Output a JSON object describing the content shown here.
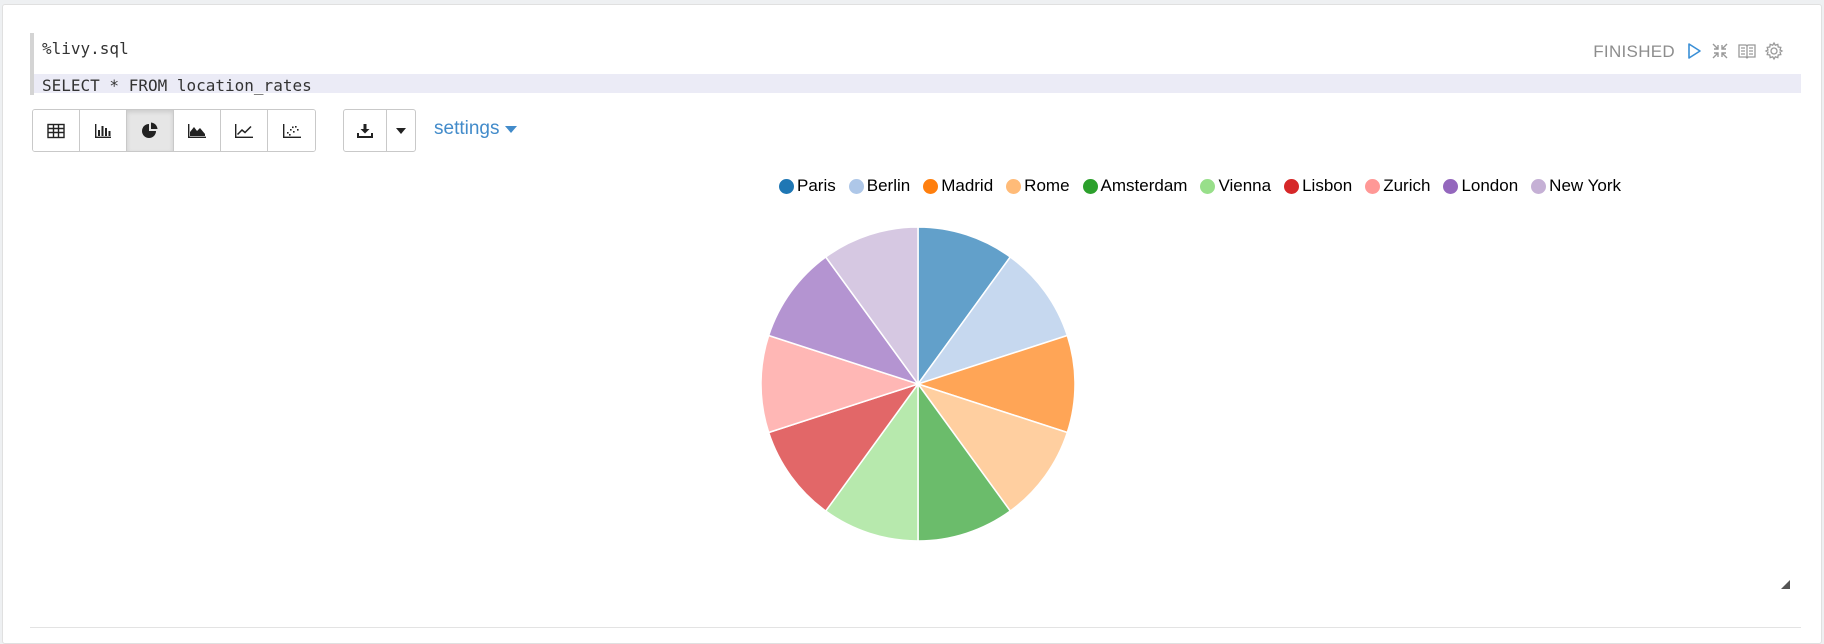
{
  "editor": {
    "interpreter": "%livy.sql",
    "query": "SELECT * FROM location_rates"
  },
  "status": {
    "text": "FINISHED",
    "icons": [
      "run-icon",
      "collapse-icon",
      "book-icon",
      "gear-icon"
    ]
  },
  "toolbar": {
    "buttons": [
      "table-icon",
      "bar-chart-icon",
      "pie-chart-icon",
      "area-chart-icon",
      "line-chart-icon",
      "scatter-chart-icon"
    ],
    "active": "pie-chart-icon",
    "download_icon": "download-icon",
    "caret_icon": "chevron-down-icon",
    "settings_label": "settings"
  },
  "chart_data": {
    "type": "pie",
    "categories": [
      "Paris",
      "Berlin",
      "Madrid",
      "Rome",
      "Amsterdam",
      "Vienna",
      "Lisbon",
      "Zurich",
      "London",
      "New York"
    ],
    "values": [
      10,
      10,
      10,
      10,
      10,
      10,
      10,
      10,
      10,
      10
    ],
    "colors": [
      "#1f77b4",
      "#aec7e8",
      "#ff7f0e",
      "#ffbb78",
      "#2ca02c",
      "#98df8a",
      "#d62728",
      "#ff9896",
      "#9467bd",
      "#c5b0d5"
    ],
    "legend": "top"
  }
}
